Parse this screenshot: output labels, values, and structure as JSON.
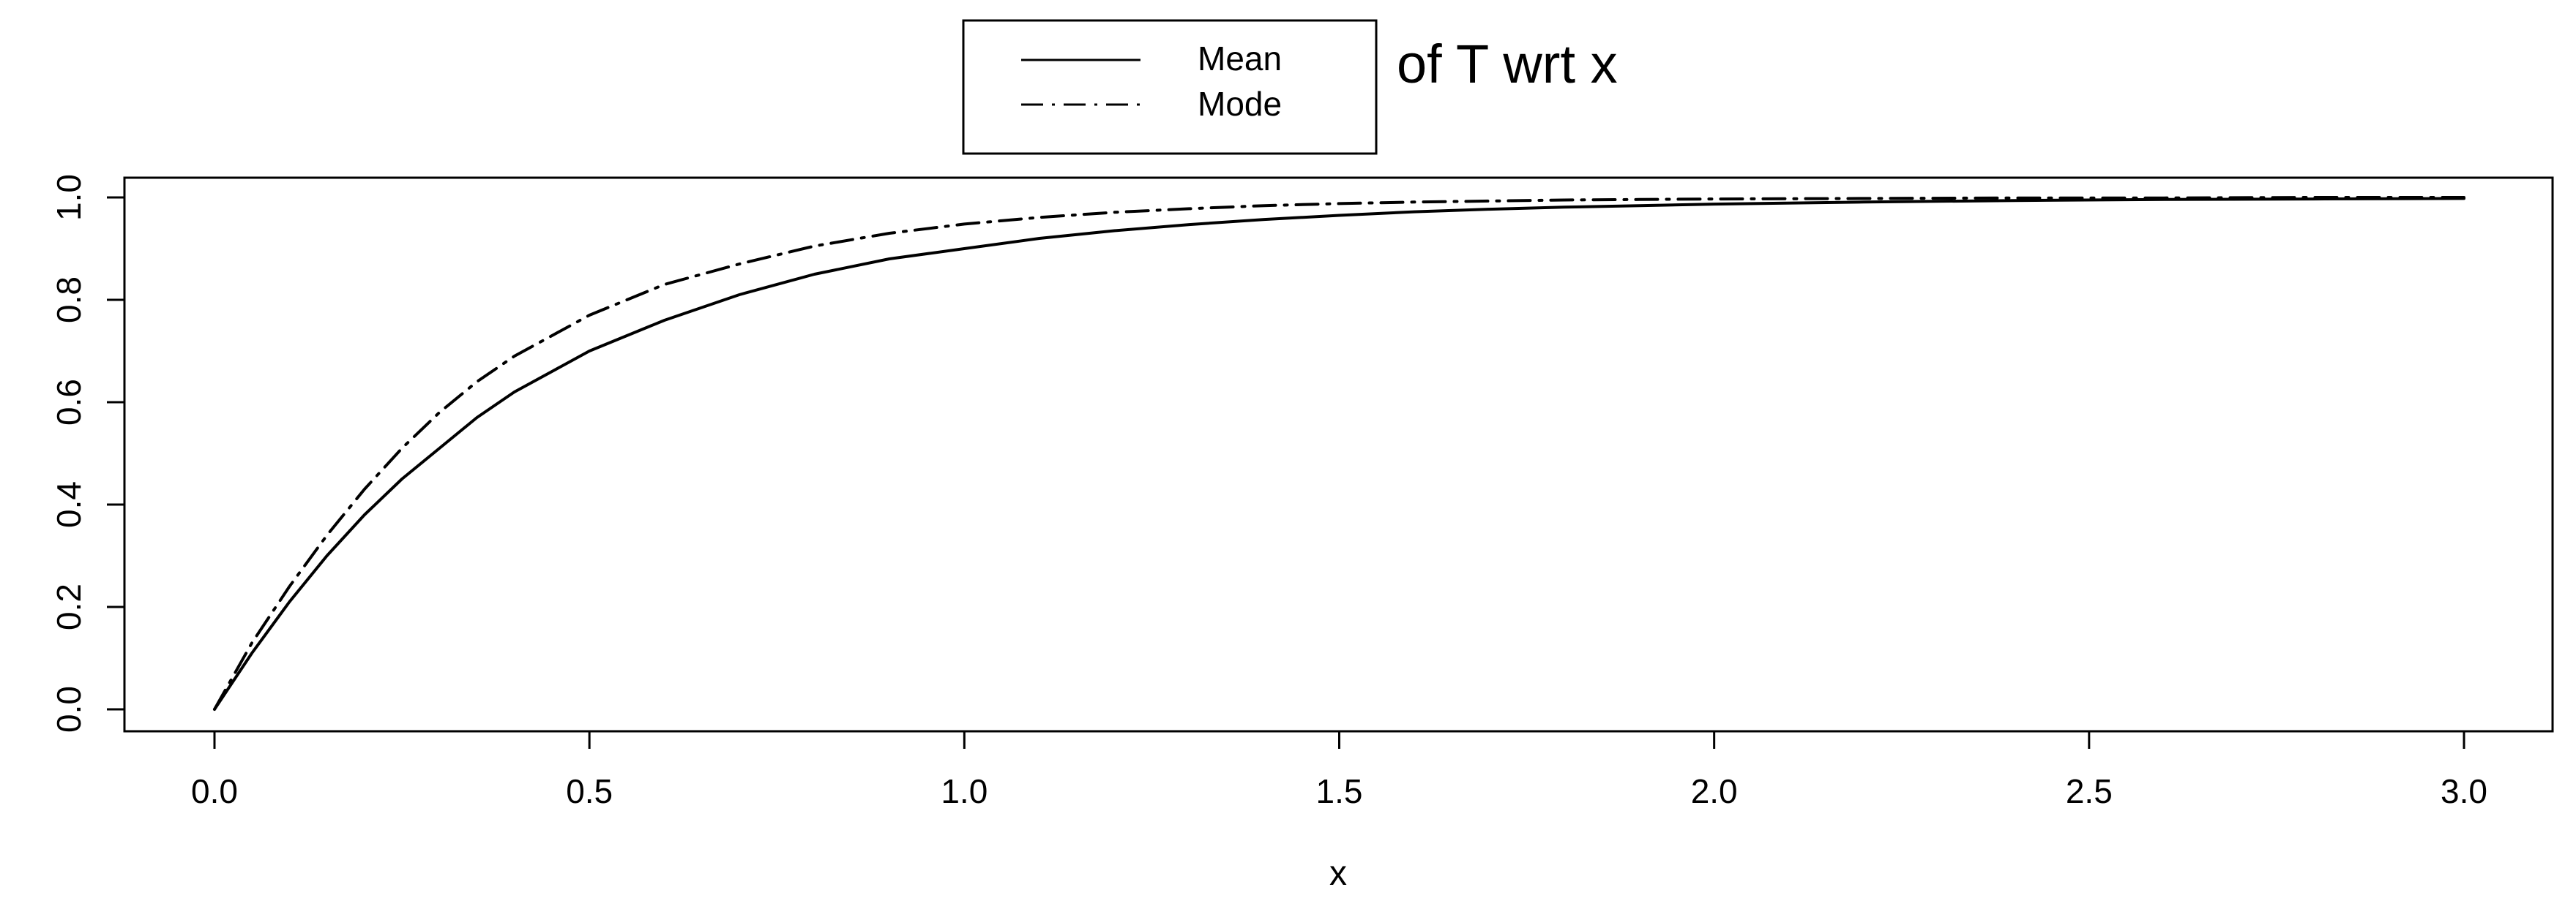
{
  "chart_data": {
    "type": "line",
    "title": "of T wrt x",
    "xlabel": "x",
    "ylabel": "",
    "xlim": [
      0,
      3
    ],
    "ylim": [
      0,
      1
    ],
    "x_ticks": [
      "0.0",
      "0.5",
      "1.0",
      "1.5",
      "2.0",
      "2.5",
      "3.0"
    ],
    "y_ticks": [
      "0.0",
      "0.2",
      "0.4",
      "0.6",
      "0.8",
      "1.0"
    ],
    "grid": false,
    "legend_position": "top-center",
    "series": [
      {
        "name": "Mean",
        "line_style": "solid",
        "color": "#000000",
        "x": [
          0,
          0.05,
          0.1,
          0.15,
          0.2,
          0.25,
          0.3,
          0.35,
          0.4,
          0.45,
          0.5,
          0.6,
          0.7,
          0.8,
          0.9,
          1.0,
          1.1,
          1.2,
          1.3,
          1.4,
          1.5,
          1.6,
          1.7,
          1.8,
          1.9,
          2.0,
          2.2,
          2.4,
          2.6,
          2.8,
          3.0
        ],
        "y": [
          0,
          0.11,
          0.21,
          0.3,
          0.38,
          0.45,
          0.51,
          0.57,
          0.62,
          0.66,
          0.7,
          0.76,
          0.81,
          0.85,
          0.88,
          0.9,
          0.92,
          0.935,
          0.947,
          0.957,
          0.965,
          0.972,
          0.977,
          0.981,
          0.984,
          0.987,
          0.991,
          0.994,
          0.996,
          0.997,
          0.998
        ]
      },
      {
        "name": "Mode",
        "line_style": "dashdot",
        "color": "#000000",
        "x": [
          0,
          0.05,
          0.1,
          0.15,
          0.2,
          0.25,
          0.3,
          0.35,
          0.4,
          0.45,
          0.5,
          0.6,
          0.7,
          0.8,
          0.9,
          1.0,
          1.1,
          1.2,
          1.3,
          1.4,
          1.5,
          1.6,
          1.7,
          1.8,
          1.9,
          2.0,
          2.2,
          2.4,
          2.6,
          2.8,
          3.0
        ],
        "y": [
          0,
          0.13,
          0.24,
          0.34,
          0.43,
          0.51,
          0.58,
          0.64,
          0.69,
          0.73,
          0.77,
          0.83,
          0.87,
          0.905,
          0.93,
          0.948,
          0.961,
          0.971,
          0.978,
          0.984,
          0.988,
          0.991,
          0.993,
          0.995,
          0.996,
          0.997,
          0.998,
          0.999,
          0.999,
          1.0,
          1.0
        ]
      }
    ]
  }
}
